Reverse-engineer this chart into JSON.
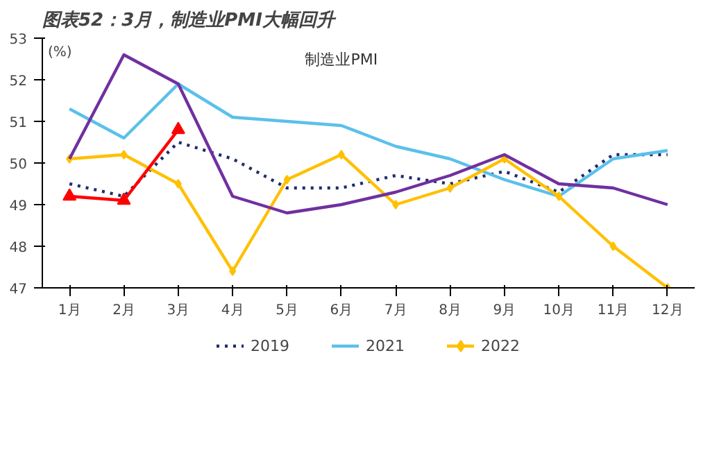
{
  "chart_data": {
    "type": "line",
    "title": "图表52：3月，制造业PMI大幅回升",
    "subtitle": "制造业PMI",
    "ylabel": "(%)",
    "categories": [
      "1月",
      "2月",
      "3月",
      "4月",
      "5月",
      "6月",
      "7月",
      "8月",
      "9月",
      "10月",
      "11月",
      "12月"
    ],
    "ylim": [
      47,
      53
    ],
    "yticks": [
      47,
      48,
      49,
      50,
      51,
      52,
      53
    ],
    "grid": false,
    "legend": "bottom",
    "series": [
      {
        "name": "2019",
        "color": "#1f2d6e",
        "line_style": "dotted",
        "marker": "none",
        "values": [
          49.5,
          49.2,
          50.5,
          50.1,
          49.4,
          49.4,
          49.7,
          49.5,
          49.8,
          49.3,
          50.2,
          50.2
        ]
      },
      {
        "name": "2021",
        "color": "#5bc0eb",
        "line_style": "solid",
        "marker": "none",
        "values": [
          51.3,
          50.6,
          51.9,
          51.1,
          51.0,
          50.9,
          50.4,
          50.1,
          49.6,
          49.2,
          50.1,
          50.3
        ]
      },
      {
        "name": "2022",
        "color": "#ffc000",
        "line_style": "solid",
        "marker": "diamond",
        "values": [
          50.1,
          50.2,
          49.5,
          47.4,
          49.6,
          50.2,
          49.0,
          49.4,
          50.1,
          49.2,
          48.0,
          47.0
        ]
      },
      {
        "color": "#7030a0",
        "line_style": "solid",
        "marker": "none",
        "values": [
          50.1,
          52.6,
          51.9,
          49.2,
          48.8,
          49.0,
          49.3,
          49.7,
          50.2,
          49.5,
          49.4,
          49.0
        ]
      },
      {
        "color": "#ff0000",
        "line_style": "solid",
        "marker": "triangle",
        "values": [
          49.2,
          49.1,
          50.8,
          null,
          null,
          null,
          null,
          null,
          null,
          null,
          null,
          null
        ]
      }
    ]
  }
}
